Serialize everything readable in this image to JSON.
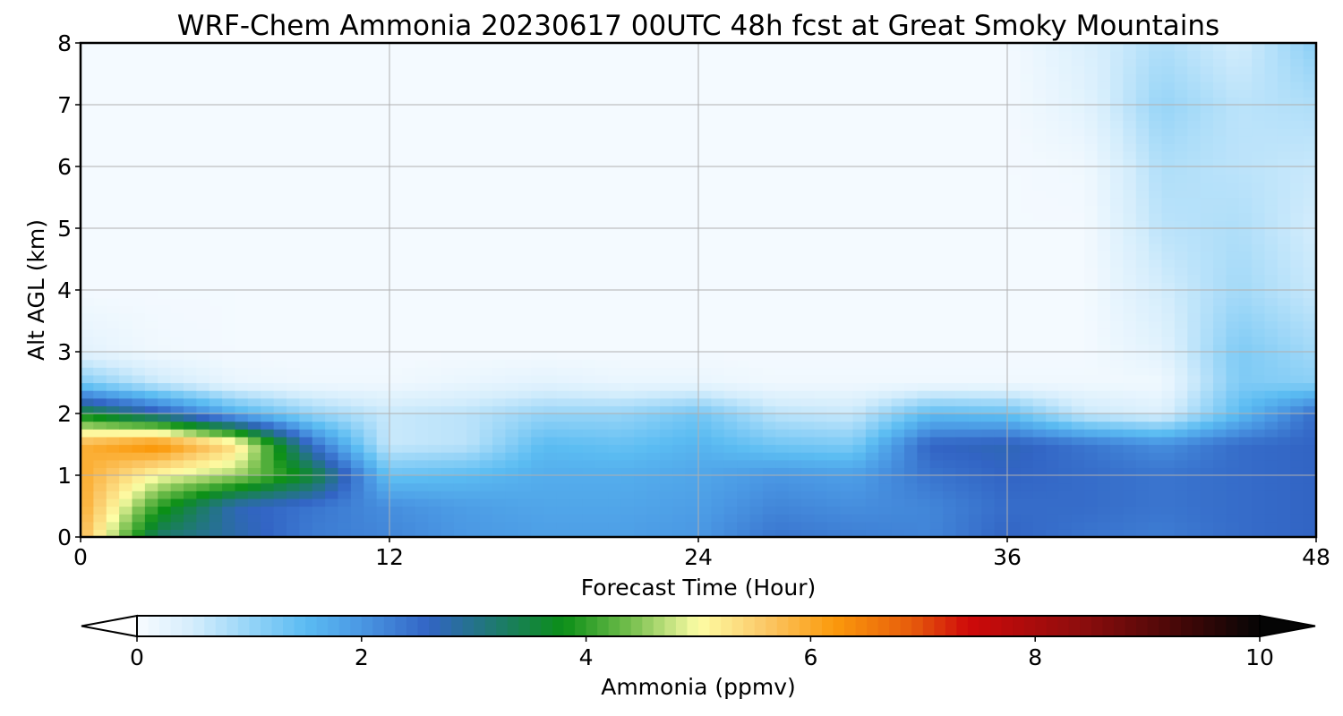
{
  "chart_data": {
    "type": "heatmap",
    "title": "WRF-Chem Ammonia  20230617 00UTC 48h fcst at Great Smoky Mountains",
    "xlabel": "Forecast Time (Hour)",
    "ylabel": "Alt AGL (km)",
    "xlim": [
      0,
      48
    ],
    "ylim": [
      0,
      8
    ],
    "x_ticks": [
      "0",
      "12",
      "24",
      "36",
      "48"
    ],
    "y_ticks": [
      "0",
      "1",
      "2",
      "3",
      "4",
      "5",
      "6",
      "7",
      "8"
    ],
    "grid": true,
    "x": [
      0,
      3,
      6,
      9,
      12,
      15,
      18,
      21,
      24,
      27,
      30,
      33,
      36,
      39,
      42,
      45,
      48
    ],
    "y": [
      0,
      0.5,
      1,
      1.5,
      2,
      2.5,
      3,
      4,
      5,
      6,
      7,
      8
    ],
    "z": [
      [
        5.8,
        3.2,
        2.8,
        2.3,
        2.2,
        2.0,
        1.9,
        1.9,
        2.0,
        2.4,
        2.3,
        2.2,
        2.6,
        2.4,
        2.3,
        2.5,
        2.6
      ],
      [
        6.0,
        4.0,
        2.7,
        2.4,
        2.1,
        1.9,
        1.8,
        1.8,
        1.9,
        2.2,
        2.1,
        2.2,
        2.5,
        2.5,
        2.4,
        2.5,
        2.6
      ],
      [
        6.0,
        5.0,
        4.6,
        3.6,
        1.4,
        1.5,
        1.7,
        1.7,
        1.8,
        2.0,
        1.9,
        2.4,
        2.6,
        2.5,
        2.4,
        2.5,
        2.6
      ],
      [
        5.9,
        6.4,
        5.4,
        2.5,
        0.6,
        0.7,
        1.5,
        1.4,
        1.6,
        1.3,
        1.2,
        2.6,
        2.7,
        2.4,
        2.1,
        2.5,
        2.6
      ],
      [
        3.7,
        2.8,
        1.7,
        1.0,
        0.6,
        0.7,
        1.0,
        1.0,
        1.3,
        0.7,
        0.6,
        1.5,
        1.4,
        0.6,
        0.4,
        1.5,
        2.5
      ],
      [
        1.2,
        0.6,
        0.2,
        0.1,
        0.1,
        0.2,
        0.3,
        0.2,
        0.2,
        0.1,
        0.1,
        0.1,
        0.1,
        0.1,
        0.1,
        1.2,
        1.1
      ],
      [
        0.3,
        0.1,
        0.05,
        0.05,
        0.05,
        0.05,
        0.05,
        0.05,
        0.05,
        0.05,
        0.05,
        0.05,
        0.05,
        0.05,
        0.3,
        1.2,
        0.9
      ],
      [
        0.05,
        0.05,
        0.05,
        0.05,
        0.05,
        0.05,
        0.05,
        0.05,
        0.05,
        0.05,
        0.05,
        0.05,
        0.05,
        0.05,
        0.5,
        0.9,
        0.6
      ],
      [
        0.05,
        0.05,
        0.05,
        0.05,
        0.05,
        0.05,
        0.05,
        0.05,
        0.05,
        0.05,
        0.05,
        0.05,
        0.05,
        0.05,
        0.7,
        0.8,
        0.5
      ],
      [
        0.05,
        0.05,
        0.05,
        0.05,
        0.05,
        0.05,
        0.05,
        0.05,
        0.05,
        0.05,
        0.05,
        0.05,
        0.05,
        0.1,
        0.8,
        0.7,
        0.6
      ],
      [
        0.05,
        0.05,
        0.05,
        0.05,
        0.05,
        0.05,
        0.05,
        0.05,
        0.05,
        0.05,
        0.05,
        0.05,
        0.05,
        0.3,
        1.0,
        0.7,
        0.8
      ],
      [
        0.05,
        0.05,
        0.05,
        0.05,
        0.05,
        0.05,
        0.05,
        0.05,
        0.05,
        0.05,
        0.05,
        0.05,
        0.05,
        0.4,
        0.8,
        0.5,
        1.1
      ]
    ],
    "colorbar": {
      "label": "Ammonia  (ppmv)",
      "ticks": [
        "0",
        "2",
        "4",
        "6",
        "8",
        "10"
      ],
      "range": [
        0,
        10
      ],
      "extend": "both",
      "color_stops": [
        {
          "value": 0,
          "color": "#f7fbff"
        },
        {
          "value": 0.5,
          "color": "#d4edfc"
        },
        {
          "value": 1.0,
          "color": "#96d4f7"
        },
        {
          "value": 1.5,
          "color": "#5bbcf2"
        },
        {
          "value": 2.0,
          "color": "#4a97e3"
        },
        {
          "value": 2.6,
          "color": "#3264c4"
        },
        {
          "value": 3.2,
          "color": "#1e7a6e"
        },
        {
          "value": 3.8,
          "color": "#0b8f17"
        },
        {
          "value": 4.4,
          "color": "#76bf4e"
        },
        {
          "value": 5.0,
          "color": "#fdfda5"
        },
        {
          "value": 5.6,
          "color": "#fbc867"
        },
        {
          "value": 6.2,
          "color": "#fb9a0c"
        },
        {
          "value": 6.9,
          "color": "#e65c0c"
        },
        {
          "value": 7.4,
          "color": "#cf0a0a"
        },
        {
          "value": 8.4,
          "color": "#8e0d0d"
        },
        {
          "value": 9.2,
          "color": "#4d0808"
        },
        {
          "value": 10.0,
          "color": "#050505"
        }
      ]
    }
  }
}
